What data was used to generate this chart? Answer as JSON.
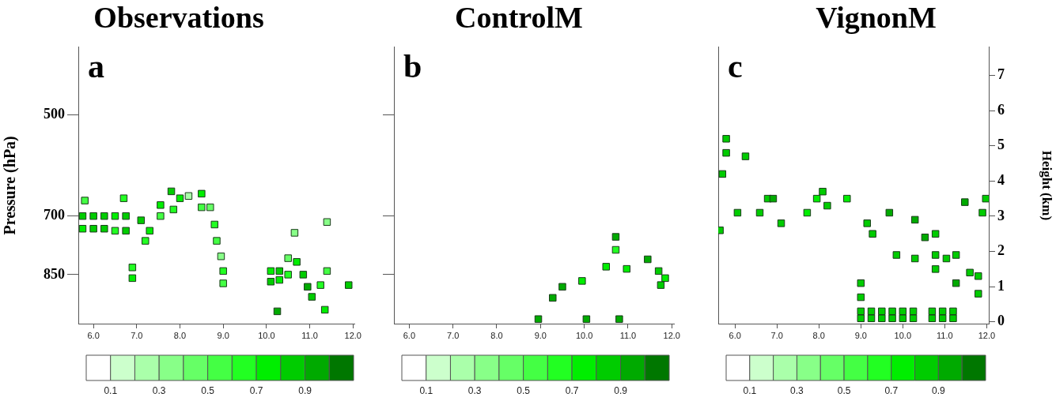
{
  "chart_data": [
    {
      "type": "scatter",
      "title": "Observations",
      "ylabel": "Pressure (hPa)",
      "annotations": [
        "a"
      ],
      "marker": "square",
      "grid": false,
      "legend": false,
      "log": "y",
      "xlim": [
        5.65,
        12.05
      ],
      "xticks": [
        {
          "value": 6,
          "label": "6.0"
        },
        {
          "value": 7,
          "label": "7.0"
        },
        {
          "value": 8,
          "label": "8.0"
        },
        {
          "value": 9,
          "label": "9.0"
        },
        {
          "value": 10,
          "label": "10.0"
        },
        {
          "value": 11,
          "label": "11.0"
        },
        {
          "value": 12,
          "label": "12.0"
        }
      ],
      "ylim": [
        1000,
        400
      ],
      "yticks": [
        500,
        700,
        850
      ],
      "clim": [
        0,
        1.1
      ],
      "cticks": [
        0.1,
        0.3,
        0.5,
        0.7,
        0.9
      ],
      "x": [
        5.75,
        6.0,
        6.25,
        6.5,
        6.75,
        5.75,
        6.0,
        6.25,
        6.5,
        6.75,
        5.8,
        6.7,
        7.1,
        7.3,
        7.2,
        7.55,
        7.55,
        7.8,
        8.0,
        7.85,
        8.2,
        8.5,
        8.5,
        8.7,
        8.8,
        8.85,
        8.95,
        6.9,
        6.9,
        9.0,
        9.0,
        10.1,
        10.3,
        10.1,
        10.3,
        10.5,
        10.5,
        10.7,
        10.65,
        10.85,
        10.95,
        11.05,
        11.25,
        11.4,
        11.4,
        10.25,
        11.35,
        11.9
      ],
      "values": [
        700,
        700,
        700,
        700,
        700,
        730,
        730,
        730,
        735,
        735,
        665,
        660,
        710,
        735,
        760,
        675,
        700,
        645,
        660,
        685,
        655,
        650,
        680,
        680,
        720,
        760,
        800,
        830,
        860,
        840,
        875,
        840,
        840,
        870,
        865,
        850,
        805,
        815,
        740,
        850,
        885,
        915,
        880,
        840,
        714,
        960,
        955,
        880
      ],
      "cvalues": [
        0.8,
        0.8,
        0.8,
        0.7,
        0.8,
        0.7,
        0.8,
        0.8,
        0.6,
        0.8,
        0.5,
        0.6,
        0.8,
        0.7,
        0.6,
        0.7,
        0.5,
        0.8,
        0.7,
        0.6,
        0.2,
        0.7,
        0.5,
        0.4,
        0.6,
        0.5,
        0.3,
        0.6,
        0.7,
        0.6,
        0.5,
        0.7,
        0.8,
        0.8,
        0.7,
        0.6,
        0.4,
        0.7,
        0.3,
        0.8,
        0.9,
        0.8,
        0.6,
        0.5,
        0.3,
        0.9,
        0.7,
        0.8
      ]
    },
    {
      "type": "scatter",
      "title": "ControlM",
      "annotations": [
        "b"
      ],
      "marker": "square",
      "grid": false,
      "legend": false,
      "log": "y",
      "tick_labels": "x",
      "xlim": [
        5.65,
        12.05
      ],
      "xticks": [
        {
          "value": 6,
          "label": "6.0"
        },
        {
          "value": 7,
          "label": "7.0"
        },
        {
          "value": 8,
          "label": "8.0"
        },
        {
          "value": 9,
          "label": "9.0"
        },
        {
          "value": 10,
          "label": "10.0"
        },
        {
          "value": 11,
          "label": "11.0"
        },
        {
          "value": 12,
          "label": "12.0"
        }
      ],
      "ylim": [
        1000,
        400
      ],
      "yticks": [
        500,
        700,
        850
      ],
      "clim": [
        0,
        1.1
      ],
      "cticks": [
        0.1,
        0.3,
        0.5,
        0.7,
        0.9
      ],
      "x": [
        9.28,
        9.5,
        9.95,
        10.5,
        10.72,
        10.72,
        10.97,
        11.45,
        11.7,
        11.85,
        11.75,
        8.95,
        10.05,
        10.8
      ],
      "values": [
        918,
        885,
        868,
        828,
        783,
        750,
        834,
        808,
        840,
        860,
        880,
        985,
        985,
        985
      ],
      "cvalues": [
        0.9,
        0.9,
        0.7,
        0.7,
        0.6,
        0.9,
        0.7,
        0.9,
        0.8,
        0.7,
        0.8,
        0.9,
        0.9,
        0.9
      ]
    },
    {
      "type": "scatter",
      "title": "VignonM",
      "y2label": "Height (km)",
      "annotations": [
        "c"
      ],
      "marker": "square",
      "grid": false,
      "legend": false,
      "log": "y",
      "xlim": [
        5.6,
        12.05
      ],
      "xticks": [
        {
          "value": 6,
          "label": "6.0"
        },
        {
          "value": 7,
          "label": "7.0"
        },
        {
          "value": 8,
          "label": "8.0"
        },
        {
          "value": 9,
          "label": "9.0"
        },
        {
          "value": 10,
          "label": "10.0"
        },
        {
          "value": 11,
          "label": "11.0"
        },
        {
          "value": 12,
          "label": "12.0"
        }
      ],
      "y2lim": [
        -0.05,
        7.8
      ],
      "y2ticks": [
        0,
        1,
        2,
        3,
        4,
        5,
        6,
        7
      ],
      "clim": [
        0,
        1.1
      ],
      "cticks": [
        0.1,
        0.3,
        0.5,
        0.7,
        0.9
      ],
      "series": [
        {
          "axis": "y2",
          "x": [
            5.79,
            5.79,
            5.7,
            6.25,
            5.64,
            6.06,
            6.59,
            6.78,
            6.91,
            7.1,
            7.72,
            7.95,
            8.09,
            8.2,
            8.67,
            9.15,
            9.28,
            9.68,
            9.85,
            10.29,
            10.29,
            10.53,
            10.78,
            10.78,
            10.78,
            11.04,
            11.27,
            11.27,
            11.6,
            11.8,
            11.8,
            11.48,
            11.98,
            11.9,
            9.0,
            9.0,
            9.0,
            9.25,
            9.5,
            9.75,
            10.0,
            10.25,
            9.25,
            9.5,
            9.75,
            10.0,
            10.25,
            9.0,
            10.7,
            10.95,
            11.2,
            10.7,
            10.95,
            11.2
          ],
          "values": [
            5.2,
            4.8,
            4.2,
            4.7,
            2.6,
            3.1,
            3.1,
            3.5,
            3.5,
            2.8,
            3.1,
            3.5,
            3.7,
            3.3,
            3.5,
            2.8,
            2.5,
            3.1,
            1.9,
            2.9,
            1.8,
            2.4,
            2.5,
            1.9,
            1.5,
            1.8,
            1.9,
            1.1,
            1.4,
            1.3,
            0.8,
            3.4,
            3.5,
            3.1,
            1.1,
            0.7,
            0.3,
            0.3,
            0.3,
            0.3,
            0.3,
            0.3,
            0.1,
            0.1,
            0.1,
            0.1,
            0.1,
            0.1,
            0.3,
            0.3,
            0.3,
            0.1,
            0.1,
            0.1
          ],
          "cvalues": [
            0.8,
            0.8,
            0.8,
            0.8,
            0.8,
            0.8,
            0.8,
            0.8,
            0.9,
            0.8,
            0.7,
            0.7,
            0.8,
            0.8,
            0.7,
            0.8,
            0.8,
            0.9,
            0.8,
            0.9,
            0.8,
            0.9,
            0.8,
            0.8,
            0.8,
            0.8,
            0.8,
            0.9,
            0.8,
            0.8,
            0.8,
            0.9,
            0.8,
            0.8,
            0.8,
            0.8,
            0.8,
            0.8,
            0.8,
            0.8,
            0.8,
            0.8,
            0.8,
            0.8,
            0.8,
            0.8,
            0.8,
            0.8,
            0.8,
            0.8,
            0.8,
            0.8,
            0.8,
            0.8
          ]
        }
      ]
    }
  ]
}
